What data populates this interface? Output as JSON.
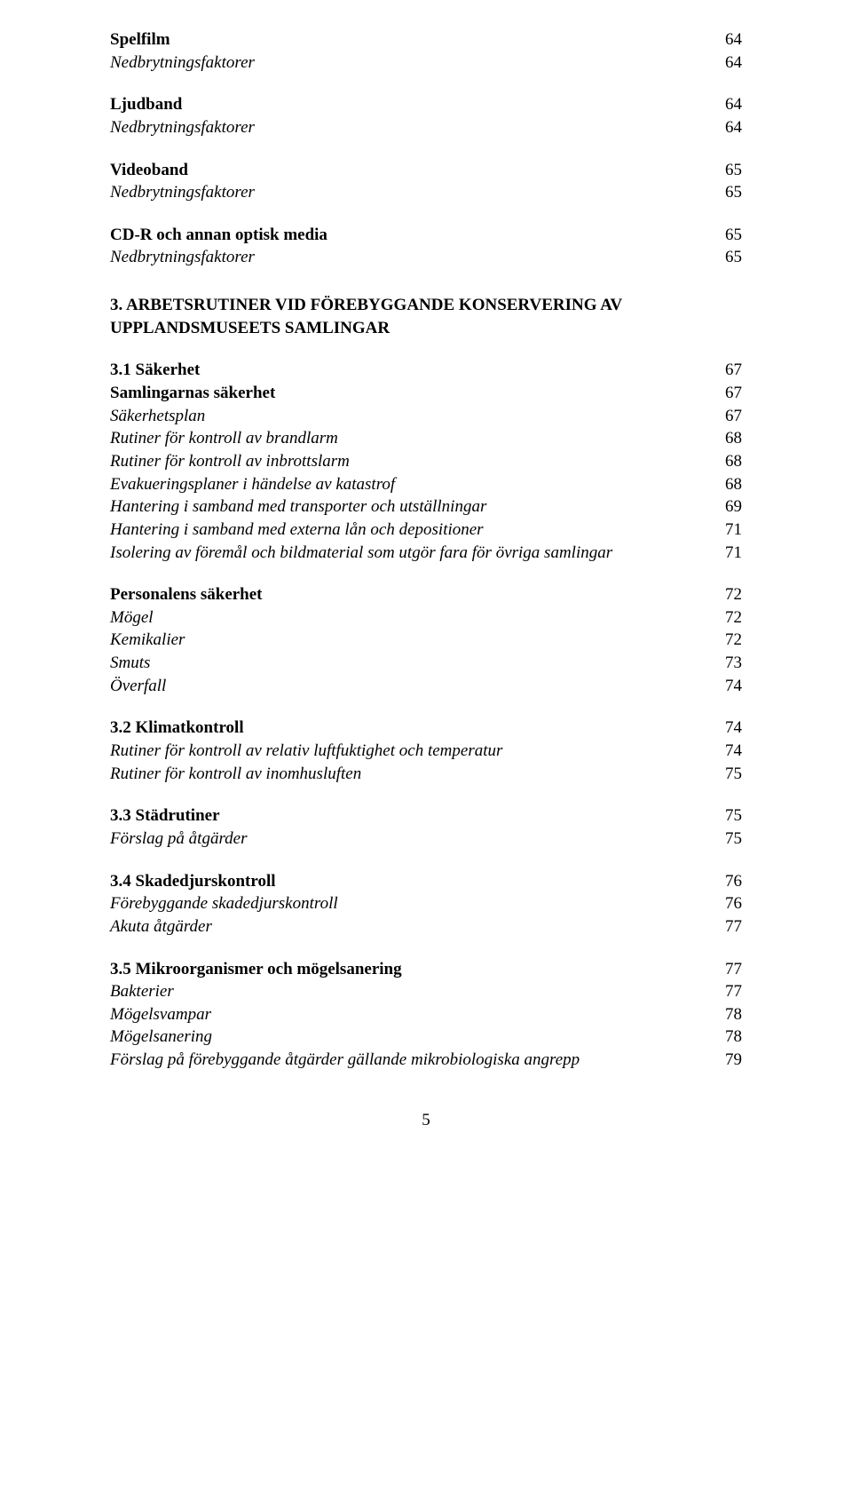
{
  "toc": {
    "group_spelfilm": {
      "title": {
        "label": "Spelfilm",
        "page": "64"
      },
      "items": [
        {
          "label": "Nedbrytningsfaktorer",
          "page": "64",
          "italic": true
        }
      ]
    },
    "group_ljudband": {
      "title": {
        "label": "Ljudband",
        "page": "64"
      },
      "items": [
        {
          "label": "Nedbrytningsfaktorer",
          "page": "64",
          "italic": true
        }
      ]
    },
    "group_videoband": {
      "title": {
        "label": "Videoband",
        "page": "65"
      },
      "items": [
        {
          "label": "Nedbrytningsfaktorer",
          "page": "65",
          "italic": true
        }
      ]
    },
    "group_cdr": {
      "title": {
        "label": "CD-R och annan optisk media",
        "page": "65"
      },
      "items": [
        {
          "label": "Nedbrytningsfaktorer",
          "page": "65",
          "italic": true
        }
      ]
    },
    "chapter3": {
      "line1": "3.  ARBETSRUTINER VID FÖREBYGGANDE KONSERVERING AV",
      "line2": "UPPLANDSMUSEETS SAMLINGAR"
    },
    "sec31": {
      "heading": {
        "label": "3.1  Säkerhet",
        "page": "67"
      },
      "subheading1": {
        "label": "Samlingarnas säkerhet",
        "page": "67"
      },
      "items1": [
        {
          "label": "Säkerhetsplan",
          "page": "67",
          "italic": true
        },
        {
          "label": "Rutiner för kontroll av brandlarm",
          "page": "68",
          "italic": true
        },
        {
          "label": "Rutiner för kontroll av inbrottslarm",
          "page": "68",
          "italic": true
        },
        {
          "label": "Evakueringsplaner i händelse av katastrof",
          "page": "68",
          "italic": true
        },
        {
          "label": "Hantering i samband med transporter och utställningar",
          "page": "69",
          "italic": true
        },
        {
          "label": "Hantering i samband med externa lån och depositioner",
          "page": "71",
          "italic": true
        },
        {
          "label": "Isolering av föremål och bildmaterial som utgör fara för övriga samlingar",
          "page": "71",
          "italic": true
        }
      ],
      "subheading2": {
        "label": "Personalens säkerhet",
        "page": "72"
      },
      "items2": [
        {
          "label": "Mögel",
          "page": "72",
          "italic": true
        },
        {
          "label": "Kemikalier",
          "page": "72",
          "italic": true
        },
        {
          "label": "Smuts",
          "page": "73",
          "italic": true
        },
        {
          "label": "Överfall",
          "page": "74",
          "italic": true
        }
      ]
    },
    "sec32": {
      "heading": {
        "label": "3.2  Klimatkontroll",
        "page": "74"
      },
      "items": [
        {
          "label": "Rutiner för kontroll av relativ luftfuktighet och temperatur",
          "page": "74",
          "italic": true
        },
        {
          "label": "Rutiner för kontroll av inomhusluften",
          "page": "75",
          "italic": true
        }
      ]
    },
    "sec33": {
      "heading": {
        "label": "3.3  Städrutiner",
        "page": "75"
      },
      "items": [
        {
          "label": "Förslag på åtgärder",
          "page": "75",
          "italic": true
        }
      ]
    },
    "sec34": {
      "heading": {
        "label": "3.4  Skadedjurskontroll",
        "page": "76"
      },
      "items": [
        {
          "label": "Förebyggande skadedjurskontroll",
          "page": "76",
          "italic": true
        },
        {
          "label": "Akuta åtgärder",
          "page": "77",
          "italic": true
        }
      ]
    },
    "sec35": {
      "heading": {
        "label": "3.5  Mikroorganismer och mögelsanering",
        "page": "77"
      },
      "items": [
        {
          "label": "Bakterier",
          "page": "77",
          "italic": true
        },
        {
          "label": "Mögelsvampar",
          "page": "78",
          "italic": true
        },
        {
          "label": "Mögelsanering",
          "page": "78",
          "italic": true
        },
        {
          "label": "Förslag på förebyggande åtgärder gällande mikrobiologiska angrepp",
          "page": "79",
          "italic": true
        }
      ]
    }
  },
  "page_number": "5"
}
